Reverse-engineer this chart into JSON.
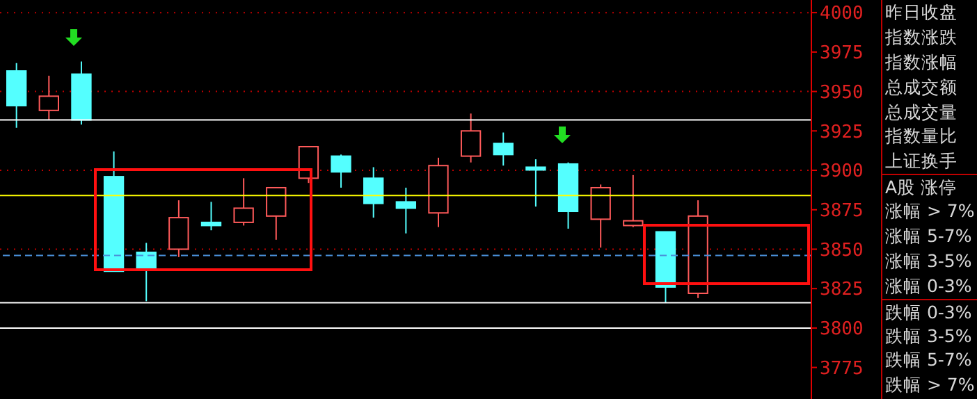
{
  "chart_data": [
    {
      "type": "candlestick",
      "categories": [
        null,
        null,
        null,
        null,
        null,
        null,
        null,
        null,
        null,
        null,
        null,
        null,
        null,
        null,
        null,
        null,
        null,
        null,
        null,
        null,
        null,
        null,
        null,
        null,
        null
      ],
      "ohlc": [
        [
          3963,
          3968,
          3927,
          3941
        ],
        [
          3938,
          3960,
          3932,
          3947
        ],
        [
          3961,
          3969,
          3929,
          3932
        ],
        [
          3896,
          3912,
          3836,
          3836
        ],
        [
          3848,
          3854,
          3817,
          3838
        ],
        [
          3850,
          3881,
          3845,
          3870
        ],
        [
          3867,
          3880,
          3862,
          3865
        ],
        [
          3867,
          3895,
          3865,
          3876
        ],
        [
          3871,
          3889,
          3856,
          3889
        ],
        [
          3895,
          3915,
          3892,
          3915
        ],
        [
          3909,
          3910,
          3889,
          3899
        ],
        [
          3895,
          3902,
          3870,
          3879
        ],
        [
          3880,
          3889,
          3860,
          3876
        ],
        [
          3873,
          3908,
          3864,
          3903
        ],
        [
          3909,
          3936,
          3905,
          3925
        ],
        [
          3917,
          3924,
          3903,
          3910
        ],
        [
          3902,
          3907,
          3877,
          3901
        ],
        [
          3904,
          3905,
          3863,
          3874
        ],
        [
          3869,
          3891,
          3851,
          3889
        ],
        [
          3865,
          3897,
          3864,
          3868
        ],
        [
          3861,
          3861,
          3816,
          3826
        ],
        [
          3822,
          3881,
          3819,
          3871
        ],
        null,
        null,
        null
      ],
      "colors": [
        "#54ffff",
        "#ff5a5a",
        "#54ffff",
        "#54ffff",
        "#54ffff",
        "#ff5a5a",
        "#54ffff",
        "#ff5a5a",
        "#ff5a5a",
        "#ff5a5a",
        "#54ffff",
        "#54ffff",
        "#54ffff",
        "#ff5a5a",
        "#ff5a5a",
        "#54ffff",
        "#54ffff",
        "#54ffff",
        "#ff5a5a",
        "#ff5a5a",
        "#54ffff",
        "#ff5a5a",
        null,
        null,
        null
      ],
      "ylim": [
        3755,
        4008
      ],
      "yticks": [
        3775,
        3800,
        3825,
        3850,
        3875,
        3900,
        3925,
        3950,
        3975,
        4000
      ],
      "grid": "y",
      "tick_labels": "y",
      "ref_lines": [
        {
          "axis": "y",
          "value": 3932,
          "color": "#ffffff"
        },
        {
          "axis": "y",
          "value": 3816,
          "color": "#ffffff"
        },
        {
          "axis": "y",
          "value": 3800,
          "color": "#ffffff"
        },
        {
          "axis": "y",
          "value": 3884,
          "color": "#ffff00"
        },
        {
          "axis": "y",
          "value": 3846,
          "color": "#4a90d9",
          "line_style": "dashed"
        }
      ]
    },
    {
      "type": "other",
      "annotations": [
        "昨日收盘",
        "指数涨跌",
        "指数涨幅",
        "总成交额",
        "总成交量",
        "指数量比",
        "上证换手",
        "A股 涨停",
        "涨幅 > 7%",
        "涨幅 5-7%",
        "涨幅 3-5%",
        "涨幅 0-3%",
        "跌幅 0-3%",
        "跌幅 3-5%",
        "跌幅 5-7%",
        "跌幅 > 7%"
      ]
    }
  ]
}
